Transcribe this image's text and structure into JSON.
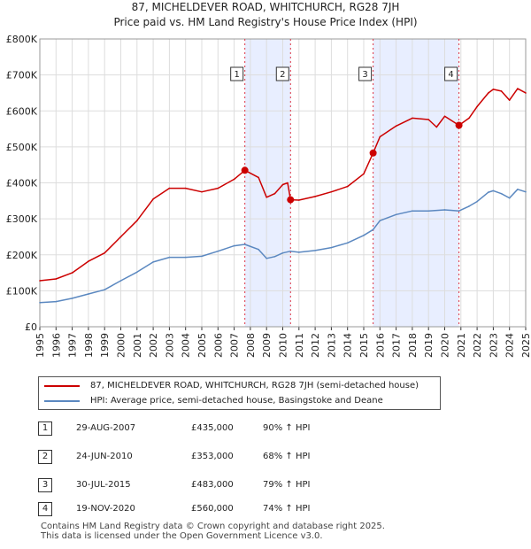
{
  "title_line1": "87, MICHELDEVER ROAD, WHITCHURCH, RG28 7JH",
  "title_line2": "Price paid vs. HM Land Registry's House Price Index (HPI)",
  "colors": {
    "price_line": "#cc0000",
    "hpi_line": "#5b88c0",
    "band": "#e8eeff",
    "marker_line": "#dd3344",
    "grid": "#dddddd"
  },
  "chart_data": {
    "type": "line",
    "ylim": [
      0,
      800000
    ],
    "xlim": [
      1995.0,
      2025.0
    ],
    "y_ticks": [
      0,
      100000,
      200000,
      300000,
      400000,
      500000,
      600000,
      700000,
      800000
    ],
    "y_tick_labels": [
      "£0",
      "£100K",
      "£200K",
      "£300K",
      "£400K",
      "£500K",
      "£600K",
      "£700K",
      "£800K"
    ],
    "x_ticks": [
      1995,
      1996,
      1997,
      1998,
      1999,
      2000,
      2001,
      2002,
      2003,
      2004,
      2005,
      2006,
      2007,
      2008,
      2009,
      2010,
      2011,
      2012,
      2013,
      2014,
      2015,
      2016,
      2017,
      2018,
      2019,
      2020,
      2021,
      2022,
      2023,
      2024,
      2025
    ],
    "shaded_ranges": [
      [
        2007.66,
        2010.48
      ],
      [
        2015.58,
        2020.88
      ]
    ],
    "series": [
      {
        "name": "87, MICHELDEVER ROAD, WHITCHURCH, RG28 7JH (semi-detached house)",
        "x": [
          1995.0,
          1996.0,
          1997.0,
          1998.0,
          1999.0,
          2000.0,
          2001.0,
          2002.0,
          2003.0,
          2004.0,
          2005.0,
          2006.0,
          2007.0,
          2007.66,
          2008.5,
          2009.0,
          2009.5,
          2010.0,
          2010.3,
          2010.48,
          2011.0,
          2012.0,
          2013.0,
          2014.0,
          2015.0,
          2015.58,
          2016.0,
          2017.0,
          2018.0,
          2019.0,
          2019.5,
          2020.0,
          2020.88,
          2021.5,
          2022.0,
          2022.7,
          2023.0,
          2023.5,
          2024.0,
          2024.5,
          2025.0
        ],
        "values": [
          128000,
          133000,
          150000,
          182000,
          205000,
          250000,
          295000,
          355000,
          385000,
          385000,
          375000,
          385000,
          410000,
          435000,
          415000,
          360000,
          370000,
          395000,
          400000,
          353000,
          352000,
          362000,
          375000,
          390000,
          425000,
          483000,
          528000,
          558000,
          580000,
          576000,
          555000,
          585000,
          560000,
          580000,
          612000,
          650000,
          660000,
          655000,
          630000,
          662000,
          650000
        ]
      },
      {
        "name": "HPI: Average price, semi-detached house, Basingstoke and Deane",
        "x": [
          1995.0,
          1996.0,
          1997.0,
          1998.0,
          1999.0,
          2000.0,
          2001.0,
          2002.0,
          2003.0,
          2004.0,
          2005.0,
          2006.0,
          2007.0,
          2007.66,
          2008.5,
          2009.0,
          2009.5,
          2010.0,
          2010.48,
          2011.0,
          2012.0,
          2013.0,
          2014.0,
          2015.0,
          2015.58,
          2016.0,
          2017.0,
          2018.0,
          2019.0,
          2020.0,
          2020.88,
          2021.5,
          2022.0,
          2022.7,
          2023.0,
          2023.5,
          2024.0,
          2024.5,
          2025.0
        ],
        "values": [
          67000,
          70000,
          79000,
          91000,
          103000,
          128000,
          152000,
          180000,
          193000,
          193000,
          196000,
          210000,
          225000,
          229000,
          215000,
          190000,
          195000,
          205000,
          210000,
          207000,
          212000,
          220000,
          233000,
          254000,
          270000,
          295000,
          312000,
          322000,
          322000,
          325000,
          322000,
          335000,
          348000,
          374000,
          378000,
          370000,
          358000,
          382000,
          375000
        ]
      }
    ],
    "markers": [
      {
        "label": "1",
        "x": 2007.66,
        "y": 435000
      },
      {
        "label": "2",
        "x": 2010.48,
        "y": 353000
      },
      {
        "label": "3",
        "x": 2015.58,
        "y": 483000
      },
      {
        "label": "4",
        "x": 2020.88,
        "y": 560000
      }
    ]
  },
  "legend": {
    "price_label": "87, MICHELDEVER ROAD, WHITCHURCH, RG28 7JH (semi-detached house)",
    "hpi_label": "HPI: Average price, semi-detached house, Basingstoke and Deane"
  },
  "transactions": [
    {
      "num": "1",
      "date": "29-AUG-2007",
      "price": "£435,000",
      "hpi": "90% ↑ HPI"
    },
    {
      "num": "2",
      "date": "24-JUN-2010",
      "price": "£353,000",
      "hpi": "68% ↑ HPI"
    },
    {
      "num": "3",
      "date": "30-JUL-2015",
      "price": "£483,000",
      "hpi": "79% ↑ HPI"
    },
    {
      "num": "4",
      "date": "19-NOV-2020",
      "price": "£560,000",
      "hpi": "74% ↑ HPI"
    }
  ],
  "footer": {
    "line1": "Contains HM Land Registry data © Crown copyright and database right 2025.",
    "line2": "This data is licensed under the Open Government Licence v3.0."
  }
}
